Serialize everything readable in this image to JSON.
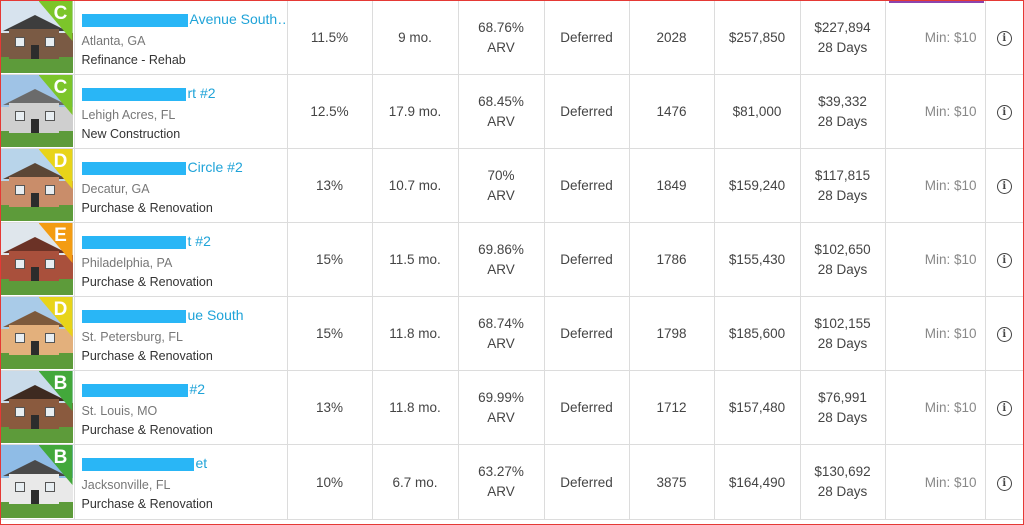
{
  "columns": [
    "image",
    "property",
    "rate",
    "term",
    "ltv",
    "payment",
    "rating",
    "amount",
    "funding",
    "minimum",
    "info"
  ],
  "rows": [
    {
      "grade": "C",
      "grade_color": "#7cc52a",
      "address_visible": "Avenue South…",
      "redact_w": 106,
      "city": "Atlanta, GA",
      "loan_type": "Refinance - Rehab",
      "rate": "11.5%",
      "term": "9 mo.",
      "ltv": "68.76%",
      "ltv_unit": "ARV",
      "payment": "Deferred",
      "score": "2028",
      "amount": "$257,850",
      "remaining": "$227,894",
      "days": "28 Days",
      "min": "Min: $10",
      "photo": {
        "sky": "#d7e3ee",
        "wall": "#7a5a44",
        "roof": "#3d3d3d"
      }
    },
    {
      "grade": "C",
      "grade_color": "#7cc52a",
      "address_visible": "rt #2",
      "redact_w": 104,
      "city": "Lehigh Acres, FL",
      "loan_type": "New Construction",
      "rate": "12.5%",
      "term": "17.9 mo.",
      "ltv": "68.45%",
      "ltv_unit": "ARV",
      "payment": "Deferred",
      "score": "1476",
      "amount": "$81,000",
      "remaining": "$39,332",
      "days": "28 Days",
      "min": "Min: $10",
      "photo": {
        "sky": "#9fc3e6",
        "wall": "#cfcfcf",
        "roof": "#6b6b6b"
      }
    },
    {
      "grade": "D",
      "grade_color": "#e8d419",
      "address_visible": "Circle #2",
      "redact_w": 104,
      "city": "Decatur, GA",
      "loan_type": "Purchase & Renovation",
      "rate": "13%",
      "term": "10.7 mo.",
      "ltv": "70%",
      "ltv_unit": "ARV",
      "payment": "Deferred",
      "score": "1849",
      "amount": "$159,240",
      "remaining": "$117,815",
      "days": "28 Days",
      "min": "Min: $10",
      "photo": {
        "sky": "#b8d4ea",
        "wall": "#c98d6a",
        "roof": "#5b4636"
      }
    },
    {
      "grade": "E",
      "grade_color": "#f39c12",
      "address_visible": "t #2",
      "redact_w": 104,
      "city": "Philadelphia, PA",
      "loan_type": "Purchase & Renovation",
      "rate": "15%",
      "term": "11.5 mo.",
      "ltv": "69.86%",
      "ltv_unit": "ARV",
      "payment": "Deferred",
      "score": "1786",
      "amount": "$155,430",
      "remaining": "$102,650",
      "days": "28 Days",
      "min": "Min: $10",
      "photo": {
        "sky": "#dfe6ec",
        "wall": "#a9503c",
        "roof": "#6b3226"
      }
    },
    {
      "grade": "D",
      "grade_color": "#e8d419",
      "address_visible": "ue South",
      "redact_w": 104,
      "city": "St. Petersburg, FL",
      "loan_type": "Purchase & Renovation",
      "rate": "15%",
      "term": "11.8 mo.",
      "ltv": "68.74%",
      "ltv_unit": "ARV",
      "payment": "Deferred",
      "score": "1798",
      "amount": "$185,600",
      "remaining": "$102,155",
      "days": "28 Days",
      "min": "Min: $10",
      "photo": {
        "sky": "#a9cbe8",
        "wall": "#e3b07c",
        "roof": "#7d5a3c"
      }
    },
    {
      "grade": "B",
      "grade_color": "#43a83b",
      "address_visible": "#2",
      "redact_w": 106,
      "city": "St. Louis, MO",
      "loan_type": "Purchase & Renovation",
      "rate": "13%",
      "term": "11.8 mo.",
      "ltv": "69.99%",
      "ltv_unit": "ARV",
      "payment": "Deferred",
      "score": "1712",
      "amount": "$157,480",
      "remaining": "$76,991",
      "days": "28 Days",
      "min": "Min: $10",
      "photo": {
        "sky": "#c9dbea",
        "wall": "#8a5a3e",
        "roof": "#3e2a20"
      }
    },
    {
      "grade": "B",
      "grade_color": "#43a83b",
      "address_visible": "et",
      "redact_w": 112,
      "city": "Jacksonville, FL",
      "loan_type": "Purchase & Renovation",
      "rate": "10%",
      "term": "6.7 mo.",
      "ltv": "63.27%",
      "ltv_unit": "ARV",
      "payment": "Deferred",
      "score": "3875",
      "amount": "$164,490",
      "remaining": "$130,692",
      "days": "28 Days",
      "min": "Min: $10",
      "photo": {
        "sky": "#8fbce6",
        "wall": "#e9e9e9",
        "roof": "#4a4a4a"
      }
    }
  ]
}
